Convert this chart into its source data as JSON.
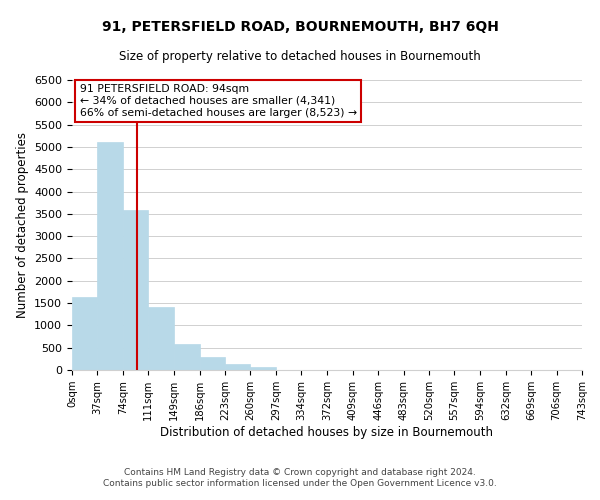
{
  "title": "91, PETERSFIELD ROAD, BOURNEMOUTH, BH7 6QH",
  "subtitle": "Size of property relative to detached houses in Bournemouth",
  "xlabel": "Distribution of detached houses by size in Bournemouth",
  "ylabel": "Number of detached properties",
  "footnote1": "Contains HM Land Registry data © Crown copyright and database right 2024.",
  "footnote2": "Contains public sector information licensed under the Open Government Licence v3.0.",
  "annotation_title": "91 PETERSFIELD ROAD: 94sqm",
  "annotation_line1": "← 34% of detached houses are smaller (4,341)",
  "annotation_line2": "66% of semi-detached houses are larger (8,523) →",
  "property_line_x": 94,
  "bin_edges": [
    0,
    37,
    74,
    111,
    149,
    186,
    223,
    260,
    297,
    334,
    372,
    409,
    446,
    483,
    520,
    557,
    594,
    632,
    669,
    706,
    743
  ],
  "bar_heights": [
    1630,
    5100,
    3580,
    1420,
    580,
    300,
    145,
    60,
    0,
    0,
    0,
    0,
    0,
    0,
    0,
    0,
    0,
    0,
    0,
    0
  ],
  "bar_color": "#b8d9e8",
  "bar_edge_color": "#b8d9e8",
  "line_color": "#cc0000",
  "ylim": [
    0,
    6500
  ],
  "yticks": [
    0,
    500,
    1000,
    1500,
    2000,
    2500,
    3000,
    3500,
    4000,
    4500,
    5000,
    5500,
    6000,
    6500
  ],
  "annotation_box_color": "#ffffff",
  "annotation_box_edge": "#cc0000",
  "background_color": "#ffffff",
  "grid_color": "#d0d0d0"
}
